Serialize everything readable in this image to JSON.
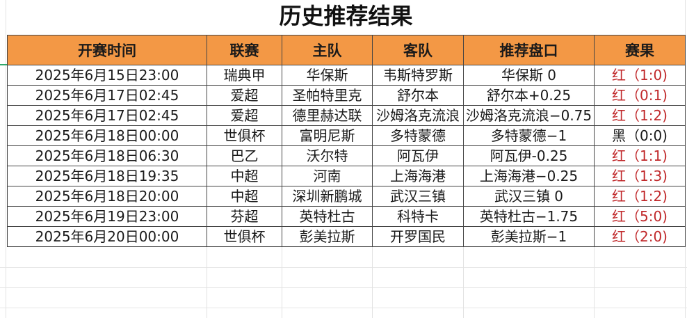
{
  "title": "历史推荐结果",
  "columns": [
    "开赛时间",
    "联赛",
    "主队",
    "客队",
    "推荐盘口",
    "赛果"
  ],
  "colors": {
    "header_bg": "#f39845",
    "win": "#c0282a",
    "neutral": "#1a1a1a"
  },
  "rows": [
    {
      "time": "2025年6月15日23:00",
      "league": "瑞典甲",
      "home": "华保斯",
      "away": "韦斯特罗斯",
      "pick": "华保斯 0",
      "result": "红（1:0)",
      "status": "red"
    },
    {
      "time": "2025年6月17日02:45",
      "league": "爱超",
      "home": "圣帕特里克",
      "away": "舒尔本",
      "pick": "舒尔本+0.25",
      "result": "红（0:1)",
      "status": "red"
    },
    {
      "time": "2025年6月17日02:45",
      "league": "爱超",
      "home": "德里赫达联",
      "away": "沙姆洛克流浪",
      "pick": "沙姆洛克流浪−0.75",
      "result": "红（1:2)",
      "status": "red"
    },
    {
      "time": "2025年6月18日00:00",
      "league": "世俱杯",
      "home": "富明尼斯",
      "away": "多特蒙德",
      "pick": "多特蒙德−1",
      "result": "黑（0:0)",
      "status": "black"
    },
    {
      "time": "2025年6月18日06:30",
      "league": "巴乙",
      "home": "沃尔特",
      "away": "阿瓦伊",
      "pick": "阿瓦伊-0.25",
      "result": "红（1:1)",
      "status": "red"
    },
    {
      "time": "2025年6月18日19:35",
      "league": "中超",
      "home": "河南",
      "away": "上海海港",
      "pick": "上海海港−0.25",
      "result": "红（1:3)",
      "status": "red"
    },
    {
      "time": "2025年6月18日20:00",
      "league": "中超",
      "home": "深圳新鹏城",
      "away": "武汉三镇",
      "pick": "武汉三镇 0",
      "result": "红（1:2)",
      "status": "red"
    },
    {
      "time": "2025年6月19日23:00",
      "league": "芬超",
      "home": "英特杜古",
      "away": "科特卡",
      "pick": "英特杜古−1.75",
      "result": "红（5:0)",
      "status": "red"
    },
    {
      "time": "2025年6月20日00:00",
      "league": "世俱杯",
      "home": "彭美拉斯",
      "away": "开罗国民",
      "pick": "彭美拉斯−1",
      "result": "红（2:0)",
      "status": "red"
    }
  ]
}
